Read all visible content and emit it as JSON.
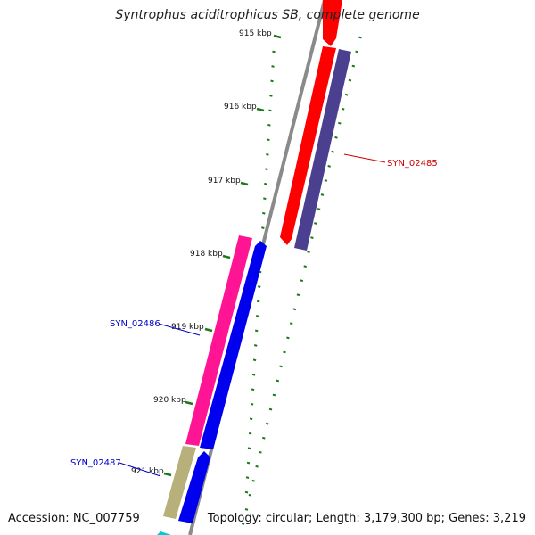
{
  "title": "Syntrophus aciditrophicus SB, complete genome",
  "accession": "Accession: NC_007759",
  "summary": "Topology: circular; Length: 3,179,300 bp; Genes: 3,219",
  "ticks": [
    {
      "label": "915 kbp"
    },
    {
      "label": "916 kbp"
    },
    {
      "label": "917 kbp"
    },
    {
      "label": "918 kbp"
    },
    {
      "label": "919 kbp"
    },
    {
      "label": "920 kbp"
    },
    {
      "label": "921 kbp"
    }
  ],
  "gene_labels": [
    {
      "label": "SYN_02485",
      "color": "#cc0000"
    },
    {
      "label": "SYN_02486",
      "color": "#0000cc"
    },
    {
      "label": "SYN_02487",
      "color": "#0000cc"
    }
  ],
  "colors": {
    "backbone": "#8a8a8a",
    "tick": "#1a7a1a",
    "red_gene": "#ff0000",
    "purple_gene": "#4b3f8f",
    "pink_gene": "#ff1493",
    "blue_gene": "#0000ee",
    "khaki_gene": "#b7b07a",
    "cyan_gene": "#00c8d8"
  }
}
